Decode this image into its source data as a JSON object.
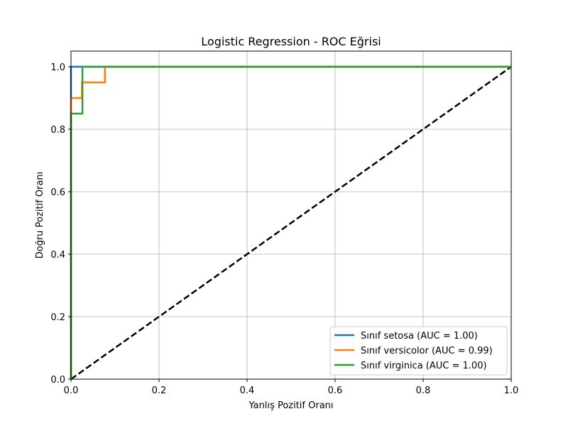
{
  "chart_data": {
    "type": "line",
    "title": "Logistic Regression - ROC Eğrisi",
    "xlabel": "Yanlış Pozitif Oranı",
    "ylabel": "Doğru Pozitif Oranı",
    "xlim": [
      0.0,
      1.0
    ],
    "ylim": [
      0.0,
      1.05
    ],
    "xticks": [
      "0.0",
      "0.2",
      "0.4",
      "0.6",
      "0.8",
      "1.0"
    ],
    "yticks": [
      "0.0",
      "0.2",
      "0.4",
      "0.6",
      "0.8",
      "1.0"
    ],
    "grid": true,
    "legend_position": "lower-right",
    "series": [
      {
        "name": "Sınıf setosa (AUC = 1.00)",
        "color": "#1f77b4",
        "x": [
          0.0,
          0.0,
          0.025,
          1.0
        ],
        "y": [
          0.0,
          1.0,
          1.0,
          1.0
        ]
      },
      {
        "name": "Sınıf versicolor (AUC = 0.99)",
        "color": "#ff7f0e",
        "x": [
          0.0,
          0.0,
          0.025,
          0.025,
          0.077,
          0.077,
          1.0
        ],
        "y": [
          0.0,
          0.9,
          0.9,
          0.95,
          0.95,
          1.0,
          1.0
        ]
      },
      {
        "name": "Sınıf virginica (AUC = 1.00)",
        "color": "#2ca02c",
        "x": [
          0.0,
          0.0,
          0.026,
          0.026,
          1.0
        ],
        "y": [
          0.0,
          0.85,
          0.85,
          1.0,
          1.0
        ]
      }
    ],
    "reference_line": {
      "x": [
        0.0,
        1.0
      ],
      "y": [
        0.0,
        1.0
      ],
      "color": "#000000",
      "style": "dashed"
    }
  }
}
